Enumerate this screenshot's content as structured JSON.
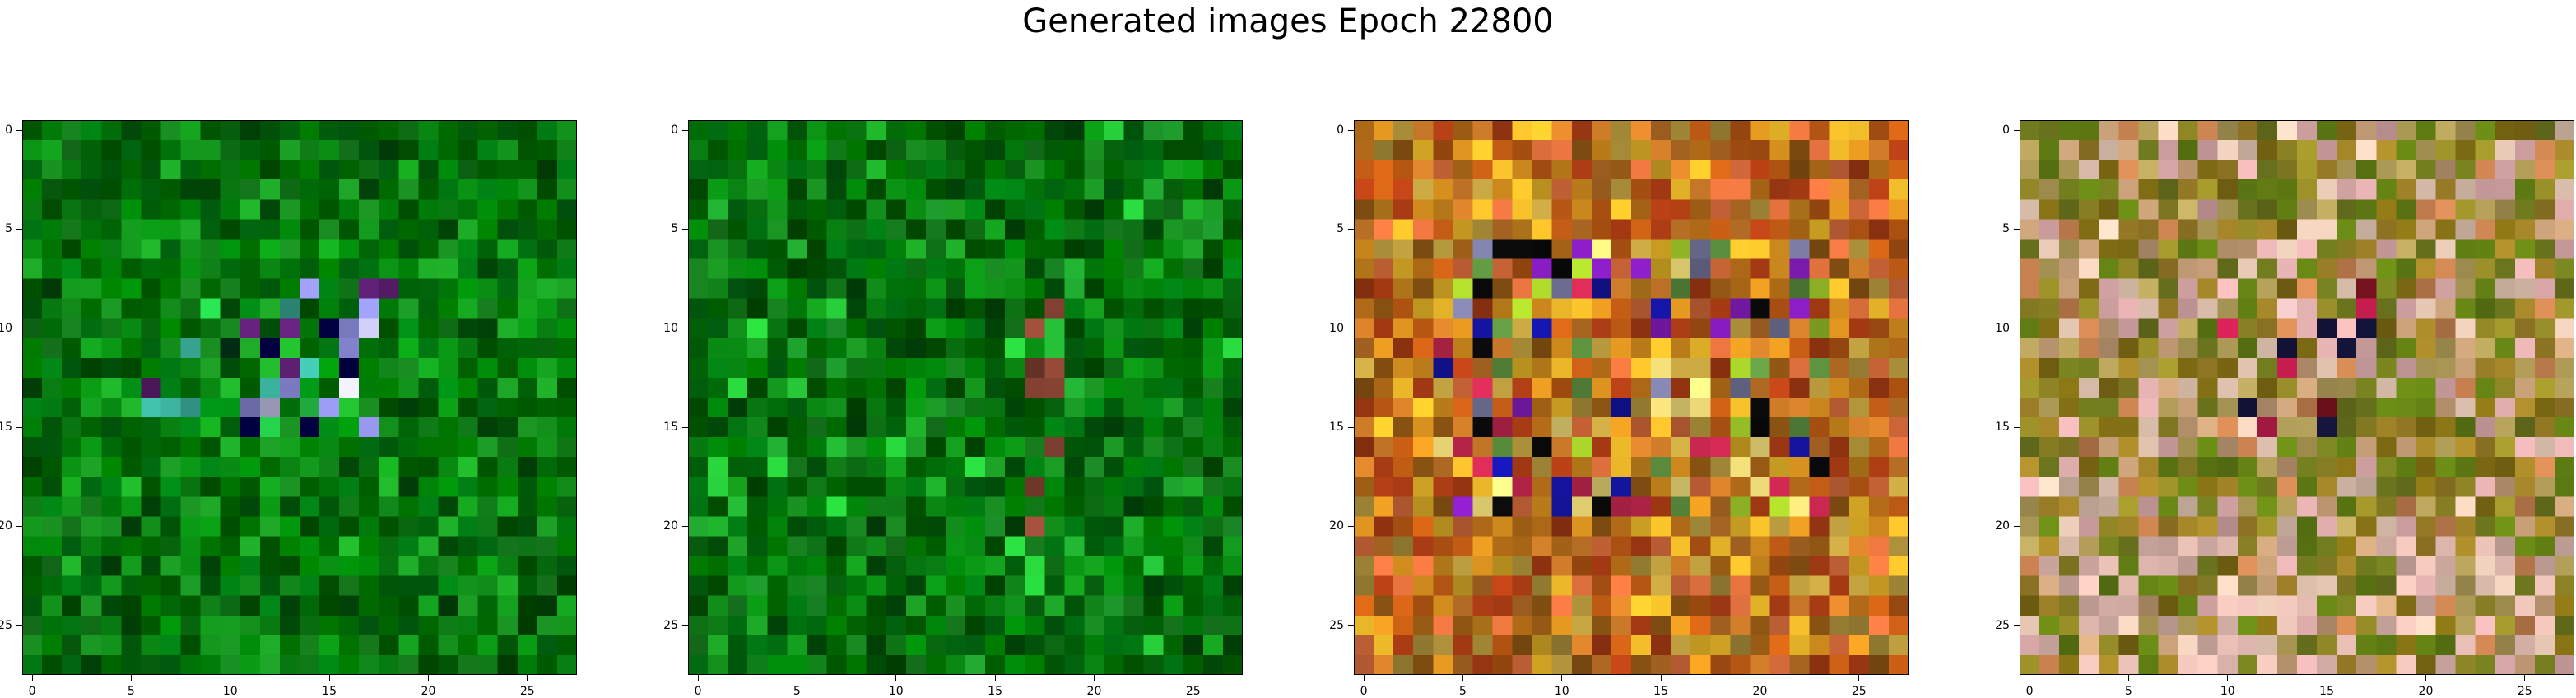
{
  "figure": {
    "title": "Generated images Epoch 22800"
  },
  "axes": {
    "x_ticks": [
      "0",
      "5",
      "10",
      "15",
      "20",
      "25"
    ],
    "y_ticks": [
      "0",
      "5",
      "10",
      "15",
      "20",
      "25"
    ],
    "grid_size": 28
  },
  "images": [
    {
      "name": "generated-image-1",
      "palette": "green"
    },
    {
      "name": "generated-image-2",
      "palette": "green-dark"
    },
    {
      "name": "generated-image-3",
      "palette": "orange"
    },
    {
      "name": "generated-image-4",
      "palette": "olive-pink"
    }
  ]
}
